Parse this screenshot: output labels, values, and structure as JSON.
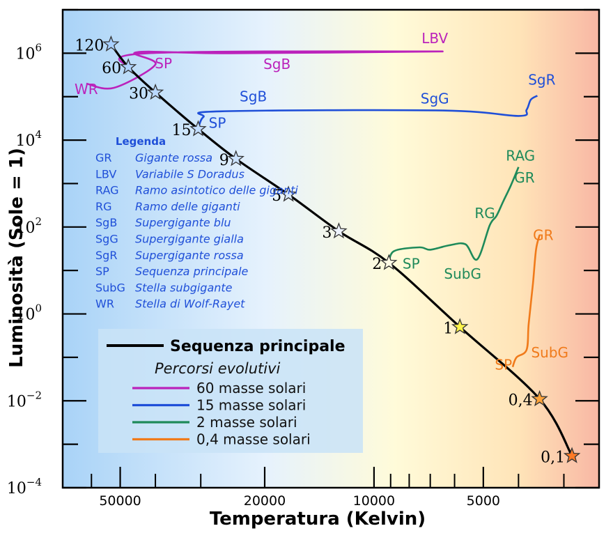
{
  "chart_data": {
    "type": "line",
    "title": "",
    "xlabel": "Temperatura (Kelvin)",
    "ylabel": "Luminosità (Sole = 1)",
    "x_scale": "log-reversed",
    "y_scale": "log",
    "xlim": [
      72000,
      2400
    ],
    "ylim": [
      0.0001,
      10000000
    ],
    "x_ticks": [
      {
        "value": 50000,
        "label": "50000"
      },
      {
        "value": 20000,
        "label": "20000"
      },
      {
        "value": 10000,
        "label": "10000"
      },
      {
        "value": 5000,
        "label": "5000"
      }
    ],
    "y_ticks": [
      {
        "value": 1000000,
        "base": "10",
        "exp": "6"
      },
      {
        "value": 10000,
        "base": "10",
        "exp": "4"
      },
      {
        "value": 100,
        "base": "10",
        "exp": "2"
      },
      {
        "value": 1,
        "base": "10",
        "exp": "0"
      },
      {
        "value": 0.01,
        "base": "10",
        "exp": "−2"
      },
      {
        "value": 0.0001,
        "base": "10",
        "exp": "−4"
      }
    ],
    "main_sequence": {
      "name": "Sequenza principale",
      "color": "#000000",
      "stars": [
        {
          "mass_label": "120",
          "T": 53000,
          "L": 1600000,
          "color": "#a8d0ff"
        },
        {
          "mass_label": "60",
          "T": 47500,
          "L": 480000,
          "color": "#b0d4ff"
        },
        {
          "mass_label": "30",
          "T": 40000,
          "L": 125000,
          "color": "#bad9ff"
        },
        {
          "mass_label": "15",
          "T": 30500,
          "L": 18000,
          "color": "#c2ddff"
        },
        {
          "mass_label": "9",
          "T": 24000,
          "L": 3700,
          "color": "#cce3ff"
        },
        {
          "mass_label": "5",
          "T": 17200,
          "L": 560,
          "color": "#d8e9ff"
        },
        {
          "mass_label": "3",
          "T": 12500,
          "L": 80,
          "color": "#eef4ff"
        },
        {
          "mass_label": "2",
          "T": 9100,
          "L": 15,
          "color": "#fffbe6"
        },
        {
          "mass_label": "1",
          "T": 5800,
          "L": 0.5,
          "color": "#fff44a"
        },
        {
          "mass_label": "0,4",
          "T": 3500,
          "L": 0.011,
          "color": "#ffa33a"
        },
        {
          "mass_label": "0,1",
          "T": 2850,
          "L": 0.00054,
          "color": "#ff7a26"
        }
      ]
    },
    "tracks": [
      {
        "name": "60 masse solari",
        "color": "#bb22bb",
        "points": [
          [
            47500,
            480000
          ],
          [
            42000,
            1000000
          ],
          [
            6500,
            1100000
          ],
          [
            25000,
            1000000
          ],
          [
            45000,
            1050000
          ],
          [
            40000,
            550000
          ],
          [
            52000,
            160000
          ],
          [
            62000,
            200000
          ]
        ],
        "labels": [
          {
            "text": "LBV",
            "T": 6800,
            "L": 1700000
          },
          {
            "text": "SgB",
            "T": 18500,
            "L": 430000
          },
          {
            "text": "SP",
            "T": 38000,
            "L": 450000
          },
          {
            "text": "WR",
            "T": 62000,
            "L": 115000
          }
        ]
      },
      {
        "name": "15 masse solari",
        "color": "#1f4fd8",
        "points": [
          [
            30500,
            18000
          ],
          [
            29500,
            34000
          ],
          [
            26500,
            46000
          ],
          [
            6500,
            48000
          ],
          [
            4000,
            36000
          ],
          [
            3800,
            50000
          ],
          [
            3700,
            85000
          ],
          [
            3550,
            105000
          ]
        ],
        "labels": [
          {
            "text": "SgB",
            "T": 21500,
            "L": 78000
          },
          {
            "text": "SgG",
            "T": 6800,
            "L": 70000
          },
          {
            "text": "SgR",
            "T": 3450,
            "L": 190000
          },
          {
            "text": "SP",
            "T": 27000,
            "L": 19000
          }
        ]
      },
      {
        "name": "2  masse solari",
        "color": "#1e8a5a",
        "points": [
          [
            9100,
            15
          ],
          [
            8800,
            28
          ],
          [
            7500,
            34
          ],
          [
            7000,
            30
          ],
          [
            6200,
            38
          ],
          [
            5600,
            40
          ],
          [
            5200,
            18
          ],
          [
            4800,
            110
          ],
          [
            4600,
            180
          ],
          [
            4400,
            400
          ],
          [
            4200,
            900
          ],
          [
            4000,
            2400
          ]
        ],
        "labels": [
          {
            "text": "RAG",
            "T": 3950,
            "L": 3400
          },
          {
            "text": "GR",
            "T": 3850,
            "L": 1050
          },
          {
            "text": "RG",
            "T": 4950,
            "L": 160
          },
          {
            "text": "SubG",
            "T": 5700,
            "L": 6.5
          },
          {
            "text": "SP",
            "T": 7900,
            "L": 11
          }
        ]
      },
      {
        "name": "0,4 masse solari",
        "color": "#f07a1a",
        "points": [
          [
            4150,
            0.06
          ],
          [
            4050,
            0.1
          ],
          [
            3800,
            0.15
          ],
          [
            3750,
            0.6
          ],
          [
            3650,
            5
          ],
          [
            3580,
            30
          ],
          [
            3500,
            65
          ]
        ],
        "labels": [
          {
            "text": "GR",
            "T": 3420,
            "L": 50
          },
          {
            "text": "SubG",
            "T": 3280,
            "L": 0.1
          },
          {
            "text": "SP",
            "T": 4400,
            "L": 0.052
          }
        ]
      }
    ],
    "legend_abbrev": {
      "title": "Legenda",
      "placement": "top-left",
      "items": [
        {
          "abbr": "GR",
          "desc": "Gigante rossa"
        },
        {
          "abbr": "LBV",
          "desc": "Variabile S Doradus"
        },
        {
          "abbr": "RAG",
          "desc": "Ramo asintotico delle giganti"
        },
        {
          "abbr": "RG",
          "desc": "Ramo delle giganti"
        },
        {
          "abbr": "SgB",
          "desc": "Supergigante blu"
        },
        {
          "abbr": "SgG",
          "desc": "Supergigante gialla"
        },
        {
          "abbr": "SgR",
          "desc": "Supergigante rossa"
        },
        {
          "abbr": "SP",
          "desc": "Sequenza principale"
        },
        {
          "abbr": "SubG",
          "desc": "Stella subgigante"
        },
        {
          "abbr": "WR",
          "desc": "Stella di Wolf-Rayet"
        }
      ]
    },
    "legend_lines": {
      "placement": "bottom-left",
      "main": "Sequenza principale",
      "subtitle": "Percorsi evolutivi",
      "entries": [
        {
          "label": "60 masse solari",
          "color": "#bb22bb"
        },
        {
          "label": "15 masse solari",
          "color": "#1f4fd8"
        },
        {
          "label": "2  masse solari",
          "color": "#1e8a5a"
        },
        {
          "label": "0,4 masse solari",
          "color": "#f07a1a"
        }
      ]
    },
    "background_gradient": [
      "#a9d3f7",
      "#e6f2fd",
      "#fffbd9",
      "#ffe4b8",
      "#f8b7a4"
    ],
    "grid": false
  }
}
